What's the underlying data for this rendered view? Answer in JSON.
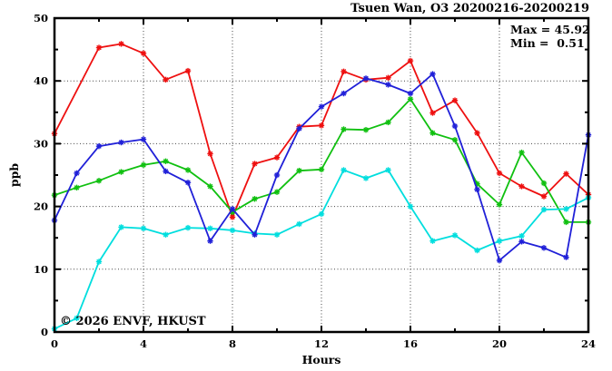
{
  "header": {
    "title": "Tsuen Wan, O3 20200216-20200219"
  },
  "annotation": {
    "max_label": "Max = 45.92",
    "min_label": "Min =  0.51"
  },
  "watermark": {
    "text": "© 2026 ENVF, HKUST",
    "color": "#dcdcdc"
  },
  "chart_data": {
    "type": "line",
    "title": "Tsuen Wan, O3 20200216-20200219",
    "xlabel": "Hours",
    "ylabel": "ppb",
    "xlim": [
      0,
      24
    ],
    "ylim": [
      0,
      50
    ],
    "x_major_ticks": [
      0,
      4,
      8,
      12,
      16,
      20,
      24
    ],
    "x_minor_step": 2,
    "y_major_ticks": [
      0,
      10,
      20,
      30,
      40,
      50
    ],
    "y_minor_step": 5,
    "grid": {
      "on": true,
      "style": "dotted",
      "x_lines": [
        4,
        8,
        12,
        16,
        20
      ],
      "y_lines": [
        10,
        20,
        30,
        40
      ]
    },
    "legend_position": "none",
    "frame_color": "#000000",
    "grid_color": "#444444",
    "x": [
      0,
      1,
      2,
      3,
      4,
      5,
      6,
      7,
      8,
      9,
      10,
      11,
      12,
      13,
      14,
      15,
      16,
      17,
      18,
      19,
      20,
      21,
      22,
      23,
      24
    ],
    "series": [
      {
        "name": "series-1-red",
        "color": "#ee1010",
        "values": [
          31.6,
          null,
          45.3,
          45.9,
          44.4,
          40.2,
          41.6,
          28.4,
          18.3,
          26.8,
          27.8,
          32.7,
          32.9,
          41.5,
          40.2,
          40.5,
          43.2,
          34.9,
          36.9,
          31.7,
          25.3,
          23.2,
          21.6,
          25.2,
          21.9
        ]
      },
      {
        "name": "series-3-green",
        "color": "#10c010",
        "values": [
          21.8,
          23.0,
          24.1,
          25.5,
          26.6,
          27.2,
          25.8,
          23.2,
          19.1,
          21.2,
          22.3,
          25.7,
          25.9,
          32.3,
          32.2,
          33.4,
          37.1,
          31.7,
          30.6,
          23.6,
          20.3,
          28.6,
          23.7,
          17.5,
          17.5
        ]
      },
      {
        "name": "series-4-cyan",
        "color": "#00dede",
        "values": [
          0.5,
          2.2,
          11.2,
          16.7,
          16.5,
          15.5,
          16.6,
          16.5,
          16.2,
          15.7,
          15.5,
          17.2,
          18.8,
          25.8,
          24.5,
          25.8,
          20.0,
          14.5,
          15.4,
          13.0,
          14.5,
          15.3,
          19.5,
          19.6,
          21.4
        ]
      },
      {
        "name": "series-2-blue",
        "color": "#2020d8",
        "values": [
          17.8,
          25.3,
          29.6,
          30.2,
          30.7,
          25.6,
          23.8,
          14.5,
          19.6,
          15.5,
          25.0,
          32.4,
          35.9,
          38.0,
          40.4,
          39.4,
          38.0,
          41.1,
          32.8,
          22.7,
          11.4,
          14.4,
          13.4,
          11.9,
          31.4
        ]
      }
    ],
    "stats": {
      "max": 45.92,
      "min": 0.51
    }
  }
}
